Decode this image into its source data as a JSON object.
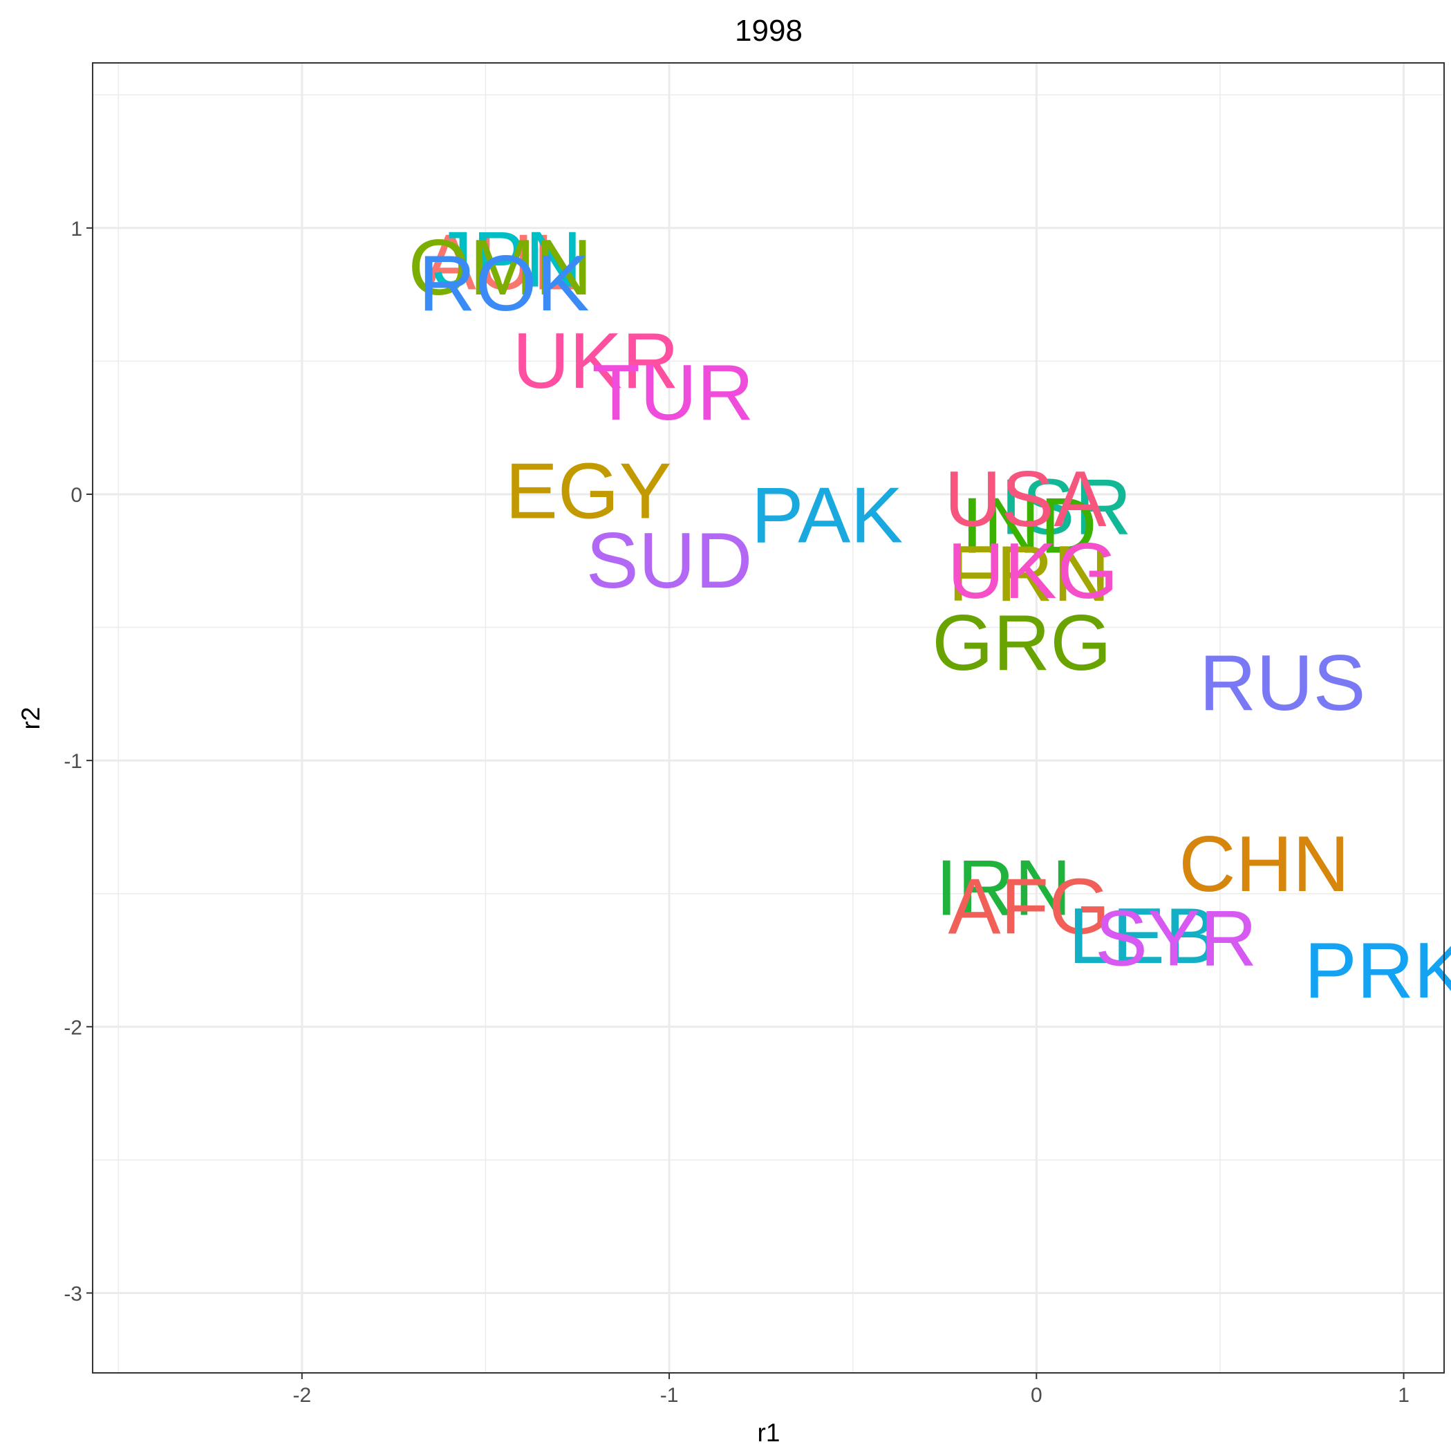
{
  "chart_data": {
    "type": "scatter",
    "title": "1998",
    "xlabel": "r1",
    "ylabel": "r2",
    "xlim": [
      -2.57,
      1.11
    ],
    "ylim": [
      -3.3,
      1.62
    ],
    "grid": true,
    "legend": "none",
    "x_ticks": [
      -2,
      -1,
      0,
      1
    ],
    "y_ticks": [
      -3,
      -2,
      -1,
      0,
      1
    ],
    "x_tick_labels": [
      "-2",
      "-1",
      "0",
      "1"
    ],
    "y_tick_labels": [
      "-3",
      "-2",
      "-1",
      "0",
      "1"
    ],
    "points": [
      {
        "label": "AUL",
        "x": -1.46,
        "y": 0.87,
        "color": "#F8766D"
      },
      {
        "label": "JPN",
        "x": -1.44,
        "y": 0.88,
        "color": "#00BFC4"
      },
      {
        "label": "OMN",
        "x": -1.46,
        "y": 0.85,
        "color": "#7CAE00"
      },
      {
        "label": "ROK",
        "x": -1.45,
        "y": 0.79,
        "color": "#3B8BF6"
      },
      {
        "label": "UKR",
        "x": -1.2,
        "y": 0.5,
        "color": "#FF4FA1"
      },
      {
        "label": "TUR",
        "x": -0.99,
        "y": 0.38,
        "color": "#EF4CDC"
      },
      {
        "label": "EGY",
        "x": -1.22,
        "y": 0.01,
        "color": "#C29A00"
      },
      {
        "label": "PAK",
        "x": -0.57,
        "y": -0.08,
        "color": "#1AA9DE"
      },
      {
        "label": "SUD",
        "x": -1.0,
        "y": -0.25,
        "color": "#B267F5"
      },
      {
        "label": "ISR",
        "x": 0.08,
        "y": -0.05,
        "color": "#12B896"
      },
      {
        "label": "IND",
        "x": -0.02,
        "y": -0.12,
        "color": "#3BB100"
      },
      {
        "label": "USA",
        "x": -0.03,
        "y": -0.02,
        "color": "#F6567E"
      },
      {
        "label": "FRN",
        "x": -0.02,
        "y": -0.3,
        "color": "#A3A500"
      },
      {
        "label": "UKG",
        "x": -0.01,
        "y": -0.29,
        "color": "#F54FCA"
      },
      {
        "label": "GRG",
        "x": -0.04,
        "y": -0.56,
        "color": "#68A300"
      },
      {
        "label": "RUS",
        "x": 0.67,
        "y": -0.71,
        "color": "#7A79F5"
      },
      {
        "label": "CHN",
        "x": 0.62,
        "y": -1.39,
        "color": "#D6860C"
      },
      {
        "label": "IRN",
        "x": -0.09,
        "y": -1.48,
        "color": "#1FB33D"
      },
      {
        "label": "AFG",
        "x": -0.02,
        "y": -1.55,
        "color": "#F06058"
      },
      {
        "label": "LEB",
        "x": 0.29,
        "y": -1.66,
        "color": "#13AFC4"
      },
      {
        "label": "SYR",
        "x": 0.38,
        "y": -1.67,
        "color": "#D659F1"
      },
      {
        "label": "PRK",
        "x": 0.95,
        "y": -1.79,
        "color": "#14A2F2"
      }
    ]
  }
}
